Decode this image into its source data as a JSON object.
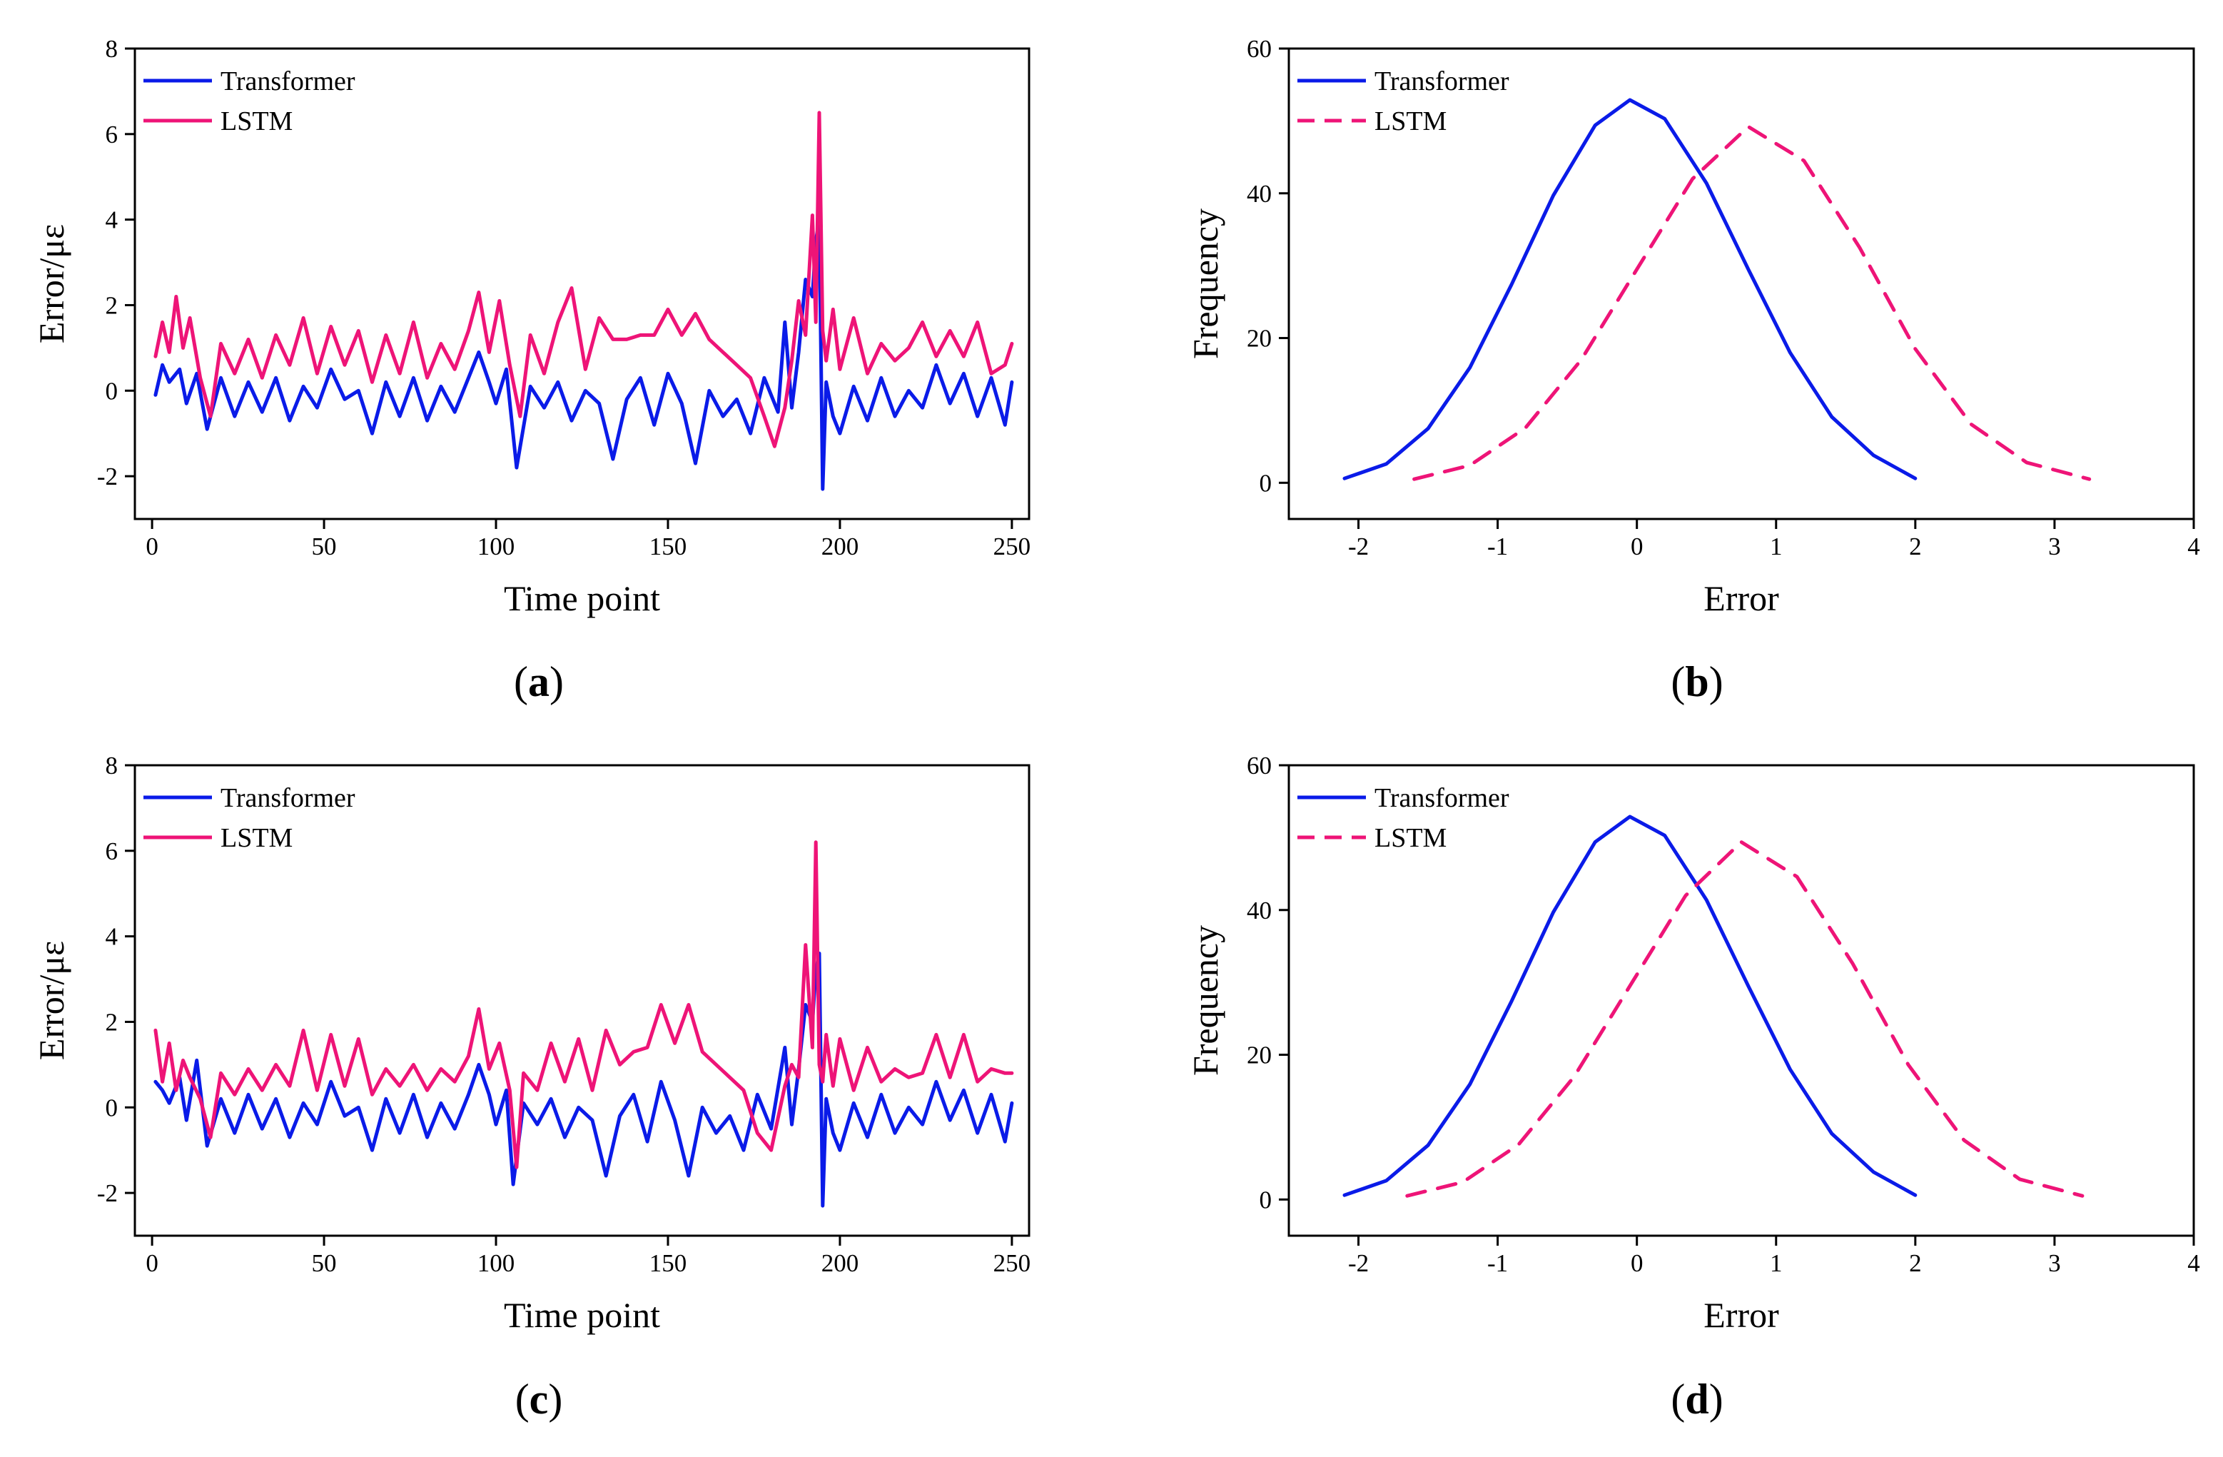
{
  "figure": {
    "panel_labels": [
      "(a)",
      "(b)",
      "(c)",
      "(d)"
    ]
  },
  "colors": {
    "transformer": "#0a1be8",
    "lstm": "#ee1477",
    "axis": "#000000",
    "background": "#ffffff"
  },
  "chart_data": [
    {
      "id": "a",
      "type": "line",
      "panel_label": "(a)",
      "title": "",
      "xlabel": "Time point",
      "ylabel": "Error/με",
      "xlim": [
        -5,
        255
      ],
      "ylim": [
        -3,
        8
      ],
      "xticks": [
        0,
        50,
        100,
        150,
        200,
        250
      ],
      "yticks": [
        -2,
        0,
        2,
        4,
        6,
        8
      ],
      "legend": [
        "Transformer",
        "LSTM"
      ],
      "legend_position": "top-left",
      "series": [
        {
          "name": "Transformer",
          "style": "solid",
          "x": [
            1,
            3,
            5,
            8,
            10,
            13,
            16,
            20,
            24,
            28,
            32,
            36,
            40,
            44,
            48,
            52,
            56,
            60,
            64,
            68,
            72,
            76,
            80,
            84,
            88,
            92,
            95,
            98,
            100,
            103,
            106,
            110,
            114,
            118,
            122,
            126,
            130,
            134,
            138,
            142,
            146,
            150,
            154,
            158,
            162,
            166,
            170,
            174,
            178,
            182,
            184,
            186,
            188,
            190,
            192,
            193,
            194,
            195,
            196,
            198,
            200,
            204,
            208,
            212,
            216,
            220,
            224,
            228,
            232,
            236,
            240,
            244,
            248,
            250
          ],
          "y": [
            -0.1,
            0.6,
            0.2,
            0.5,
            -0.3,
            0.4,
            -0.9,
            0.3,
            -0.6,
            0.2,
            -0.5,
            0.3,
            -0.7,
            0.1,
            -0.4,
            0.5,
            -0.2,
            0.0,
            -1.0,
            0.2,
            -0.6,
            0.3,
            -0.7,
            0.1,
            -0.5,
            0.3,
            0.9,
            0.2,
            -0.3,
            0.5,
            -1.8,
            0.1,
            -0.4,
            0.2,
            -0.7,
            0.0,
            -0.3,
            -1.6,
            -0.2,
            0.3,
            -0.8,
            0.4,
            -0.3,
            -1.7,
            0.0,
            -0.6,
            -0.2,
            -1.0,
            0.3,
            -0.5,
            1.6,
            -0.4,
            0.9,
            2.6,
            2.2,
            3.5,
            4.0,
            -2.3,
            0.2,
            -0.6,
            -1.0,
            0.1,
            -0.7,
            0.3,
            -0.6,
            0.0,
            -0.4,
            0.6,
            -0.3,
            0.4,
            -0.6,
            0.3,
            -0.8,
            0.2
          ]
        },
        {
          "name": "LSTM",
          "style": "solid",
          "x": [
            1,
            3,
            5,
            7,
            9,
            11,
            14,
            17,
            20,
            24,
            28,
            32,
            36,
            40,
            44,
            48,
            52,
            56,
            60,
            64,
            68,
            72,
            76,
            80,
            84,
            88,
            92,
            95,
            98,
            101,
            104,
            107,
            110,
            114,
            118,
            122,
            126,
            130,
            134,
            138,
            142,
            146,
            150,
            154,
            158,
            162,
            166,
            170,
            174,
            178,
            181,
            184,
            186,
            188,
            190,
            192,
            193,
            194,
            195,
            196,
            198,
            200,
            204,
            208,
            212,
            216,
            220,
            224,
            228,
            232,
            236,
            240,
            244,
            248,
            250
          ],
          "y": [
            0.8,
            1.6,
            0.9,
            2.2,
            1.0,
            1.7,
            0.3,
            -0.6,
            1.1,
            0.4,
            1.2,
            0.3,
            1.3,
            0.6,
            1.7,
            0.4,
            1.5,
            0.6,
            1.4,
            0.2,
            1.3,
            0.4,
            1.6,
            0.3,
            1.1,
            0.5,
            1.4,
            2.3,
            0.9,
            2.1,
            0.6,
            -0.6,
            1.3,
            0.4,
            1.6,
            2.4,
            0.5,
            1.7,
            1.2,
            1.2,
            1.3,
            1.3,
            1.9,
            1.3,
            1.8,
            1.2,
            0.9,
            0.6,
            0.3,
            -0.6,
            -1.3,
            -0.4,
            0.7,
            2.1,
            1.3,
            4.1,
            1.6,
            6.5,
            1.4,
            0.7,
            1.9,
            0.5,
            1.7,
            0.4,
            1.1,
            0.7,
            1.0,
            1.6,
            0.8,
            1.4,
            0.8,
            1.6,
            0.4,
            0.6,
            1.1
          ]
        }
      ]
    },
    {
      "id": "b",
      "type": "line",
      "panel_label": "(b)",
      "title": "",
      "xlabel": "Error",
      "ylabel": "Frequency",
      "xlim": [
        -2.5,
        4
      ],
      "ylim": [
        -5,
        60
      ],
      "xticks": [
        -2,
        -1,
        0,
        1,
        2,
        3,
        4
      ],
      "yticks": [
        0,
        20,
        40,
        60
      ],
      "legend": [
        "Transformer",
        "LSTM"
      ],
      "legend_position": "top-left",
      "series": [
        {
          "name": "Transformer",
          "style": "solid",
          "x": [
            -2.1,
            -1.8,
            -1.5,
            -1.2,
            -0.9,
            -0.6,
            -0.3,
            -0.05,
            0.2,
            0.5,
            0.8,
            1.1,
            1.4,
            1.7,
            2.0
          ],
          "y": [
            0.6,
            2.6,
            7.5,
            15.9,
            27.4,
            39.7,
            49.4,
            52.9,
            50.3,
            41.4,
            29.5,
            18.0,
            9.1,
            3.8,
            0.6
          ],
          "mean": -0.05,
          "peak": 52.9
        },
        {
          "name": "LSTM",
          "style": "dashed",
          "x": [
            -1.6,
            -1.2,
            -0.8,
            -0.4,
            0.0,
            0.4,
            0.8,
            1.2,
            1.6,
            2.0,
            2.4,
            2.8,
            3.25
          ],
          "y": [
            0.5,
            2.4,
            7.6,
            17.0,
            29.5,
            42.0,
            49.2,
            44.5,
            32.5,
            18.5,
            8.1,
            2.8,
            0.5
          ],
          "mean": 0.8,
          "peak": 49.2
        }
      ]
    },
    {
      "id": "c",
      "type": "line",
      "panel_label": "(c)",
      "title": "",
      "xlabel": "Time point",
      "ylabel": "Error/με",
      "xlim": [
        -5,
        255
      ],
      "ylim": [
        -3,
        8
      ],
      "xticks": [
        0,
        50,
        100,
        150,
        200,
        250
      ],
      "yticks": [
        -2,
        0,
        2,
        4,
        6,
        8
      ],
      "legend": [
        "Transformer",
        "LSTM"
      ],
      "legend_position": "top-left",
      "series": [
        {
          "name": "Transformer",
          "style": "solid",
          "x": [
            1,
            3,
            5,
            8,
            10,
            13,
            16,
            20,
            24,
            28,
            32,
            36,
            40,
            44,
            48,
            52,
            56,
            60,
            64,
            68,
            72,
            76,
            80,
            84,
            88,
            92,
            95,
            98,
            100,
            103,
            105,
            108,
            112,
            116,
            120,
            124,
            128,
            132,
            136,
            140,
            144,
            148,
            152,
            156,
            160,
            164,
            168,
            172,
            176,
            180,
            184,
            186,
            188,
            190,
            192,
            193,
            194,
            195,
            196,
            198,
            200,
            204,
            208,
            212,
            216,
            220,
            224,
            228,
            232,
            236,
            240,
            244,
            248,
            250
          ],
          "y": [
            0.6,
            0.4,
            0.1,
            0.7,
            -0.3,
            1.1,
            -0.9,
            0.2,
            -0.6,
            0.3,
            -0.5,
            0.2,
            -0.7,
            0.1,
            -0.4,
            0.6,
            -0.2,
            0.0,
            -1.0,
            0.2,
            -0.6,
            0.3,
            -0.7,
            0.1,
            -0.5,
            0.3,
            1.0,
            0.3,
            -0.4,
            0.4,
            -1.8,
            0.1,
            -0.4,
            0.2,
            -0.7,
            0.0,
            -0.3,
            -1.6,
            -0.2,
            0.3,
            -0.8,
            0.6,
            -0.3,
            -1.6,
            0.0,
            -0.6,
            -0.2,
            -1.0,
            0.3,
            -0.5,
            1.4,
            -0.4,
            0.9,
            2.4,
            2.0,
            3.2,
            3.6,
            -2.3,
            0.2,
            -0.6,
            -1.0,
            0.1,
            -0.7,
            0.3,
            -0.6,
            0.0,
            -0.4,
            0.6,
            -0.3,
            0.4,
            -0.6,
            0.3,
            -0.8,
            0.1
          ]
        },
        {
          "name": "LSTM",
          "style": "solid",
          "x": [
            1,
            3,
            5,
            7,
            9,
            11,
            14,
            17,
            20,
            24,
            28,
            32,
            36,
            40,
            44,
            48,
            52,
            56,
            60,
            64,
            68,
            72,
            76,
            80,
            84,
            88,
            92,
            95,
            98,
            101,
            104,
            106,
            108,
            112,
            116,
            120,
            124,
            128,
            132,
            136,
            140,
            144,
            148,
            152,
            156,
            160,
            164,
            168,
            172,
            176,
            180,
            184,
            186,
            188,
            190,
            192,
            193,
            194,
            195,
            196,
            198,
            200,
            204,
            208,
            212,
            216,
            220,
            224,
            228,
            232,
            236,
            240,
            244,
            248,
            250
          ],
          "y": [
            1.8,
            0.6,
            1.5,
            0.4,
            1.1,
            0.7,
            0.2,
            -0.7,
            0.8,
            0.3,
            0.9,
            0.4,
            1.0,
            0.5,
            1.8,
            0.4,
            1.7,
            0.5,
            1.6,
            0.3,
            0.9,
            0.5,
            1.0,
            0.4,
            0.9,
            0.6,
            1.2,
            2.3,
            0.9,
            1.5,
            0.4,
            -1.4,
            0.8,
            0.4,
            1.5,
            0.6,
            1.6,
            0.4,
            1.8,
            1.0,
            1.3,
            1.4,
            2.4,
            1.5,
            2.4,
            1.3,
            1.0,
            0.7,
            0.4,
            -0.6,
            -1.0,
            0.5,
            1.0,
            0.7,
            3.8,
            1.4,
            6.2,
            1.0,
            0.6,
            1.7,
            0.5,
            1.6,
            0.4,
            1.4,
            0.6,
            0.9,
            0.7,
            0.8,
            1.7,
            0.7,
            1.7,
            0.6,
            0.9,
            0.8,
            0.8
          ]
        }
      ]
    },
    {
      "id": "d",
      "type": "line",
      "panel_label": "(d)",
      "title": "",
      "xlabel": "Error",
      "ylabel": "Frequency",
      "xlim": [
        -2.5,
        4
      ],
      "ylim": [
        -5,
        60
      ],
      "xticks": [
        -2,
        -1,
        0,
        1,
        2,
        3,
        4
      ],
      "yticks": [
        0,
        20,
        40,
        60
      ],
      "legend": [
        "Transformer",
        "LSTM"
      ],
      "legend_position": "top-left",
      "series": [
        {
          "name": "Transformer",
          "style": "solid",
          "x": [
            -2.1,
            -1.8,
            -1.5,
            -1.2,
            -0.9,
            -0.6,
            -0.3,
            -0.05,
            0.2,
            0.5,
            0.8,
            1.1,
            1.4,
            1.7,
            2.0
          ],
          "y": [
            0.6,
            2.6,
            7.5,
            15.9,
            27.4,
            39.7,
            49.4,
            52.9,
            50.3,
            41.4,
            29.5,
            18.0,
            9.1,
            3.8,
            0.6
          ],
          "mean": -0.05,
          "peak": 52.9
        },
        {
          "name": "LSTM",
          "style": "dashed",
          "x": [
            -1.65,
            -1.25,
            -0.85,
            -0.45,
            -0.05,
            0.35,
            0.75,
            1.15,
            1.55,
            1.95,
            2.35,
            2.75,
            3.2
          ],
          "y": [
            0.5,
            2.4,
            7.6,
            17.0,
            29.5,
            42.0,
            49.4,
            44.6,
            32.6,
            18.6,
            8.2,
            2.8,
            0.5
          ],
          "mean": 0.75,
          "peak": 49.4
        }
      ]
    }
  ]
}
